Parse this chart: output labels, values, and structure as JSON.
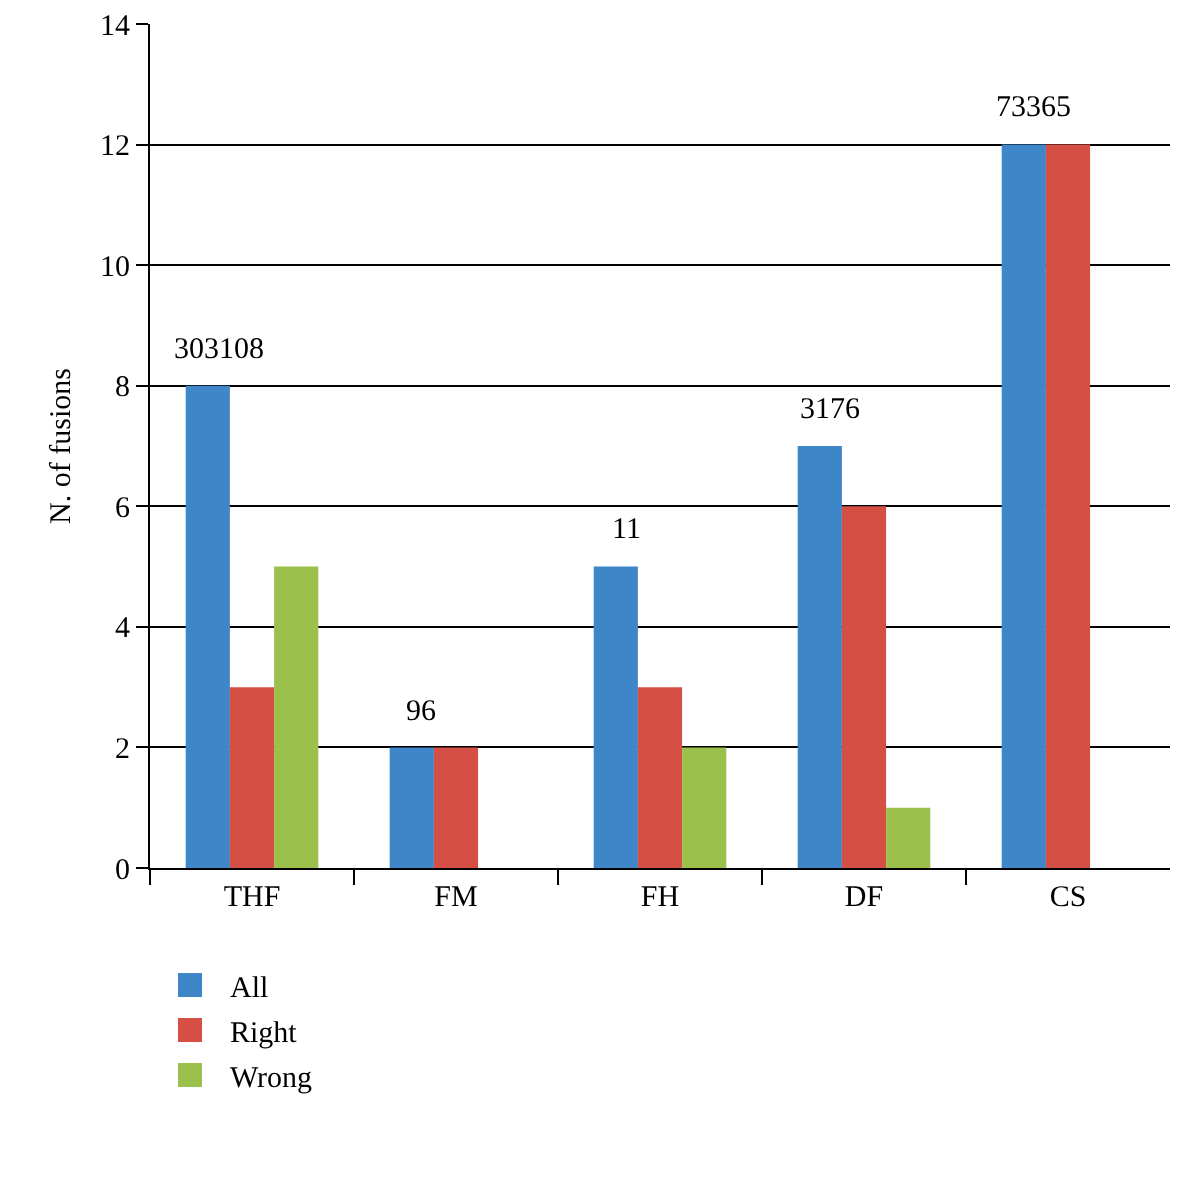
{
  "chart_data": {
    "type": "bar",
    "ylabel": "N. of fusions",
    "categories": [
      "THF",
      "FM",
      "FH",
      "DF",
      "CS"
    ],
    "series": [
      {
        "name": "All",
        "color": "#3f86c8",
        "values": [
          8,
          2,
          5,
          7,
          12
        ]
      },
      {
        "name": "Right",
        "color": "#d54f44",
        "values": [
          3,
          2,
          3,
          6,
          12
        ]
      },
      {
        "name": "Wrong",
        "color": "#9cc04c",
        "values": [
          5,
          null,
          2,
          1,
          null
        ]
      }
    ],
    "ylim": [
      0,
      14
    ],
    "yticks": [
      0,
      2,
      4,
      6,
      8,
      10,
      12,
      14
    ],
    "grid": "y",
    "legend": "bottom left",
    "annotations": [
      "303108",
      "96",
      "11",
      "3176",
      "73365"
    ]
  }
}
